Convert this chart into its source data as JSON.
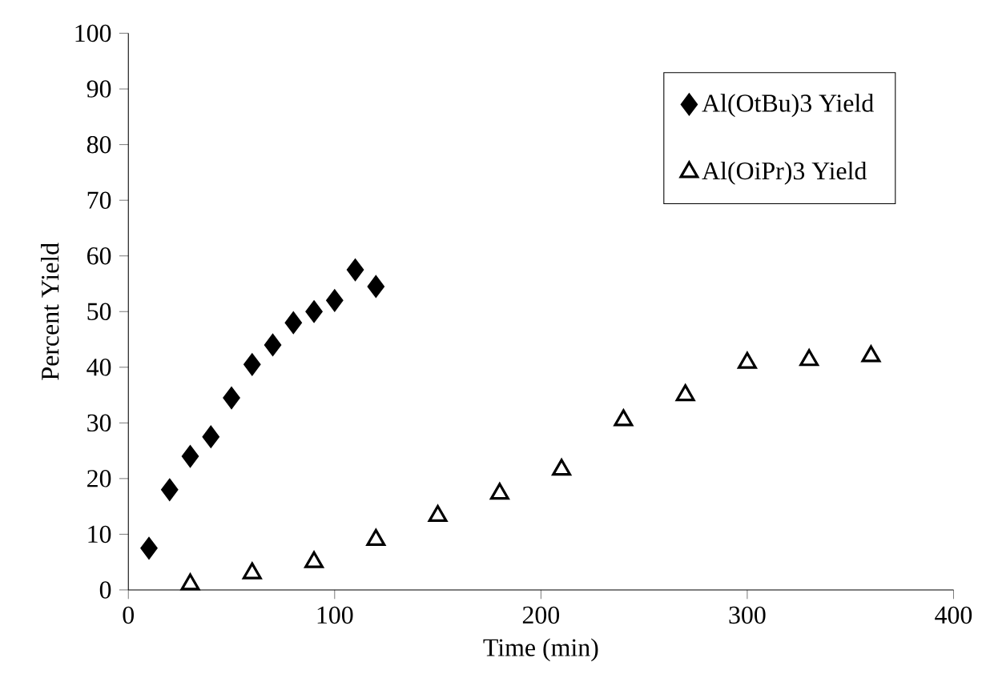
{
  "chart_data": {
    "type": "scatter",
    "xlabel": "Time (min)",
    "ylabel": "Percent Yield",
    "xlim": [
      0,
      400
    ],
    "xticks": [
      0,
      100,
      200,
      300,
      400
    ],
    "ylim": [
      0,
      100
    ],
    "yticks": [
      0,
      10,
      20,
      30,
      40,
      50,
      60,
      70,
      80,
      90,
      100
    ],
    "grid": false,
    "legend": "top right",
    "series": [
      {
        "name": "Al(OtBu)3 Yield",
        "color": "#000000",
        "marker": "diamond",
        "x": [
          10,
          20,
          30,
          40,
          50,
          60,
          70,
          80,
          90,
          100,
          110,
          120
        ],
        "values": [
          7.5,
          18,
          24,
          27.5,
          34.5,
          40.5,
          44,
          48,
          50,
          52,
          57.5,
          54.5
        ]
      },
      {
        "name": "Al(OiPr)3 Yield",
        "color": "#000000",
        "marker": "triangle",
        "x": [
          30,
          60,
          90,
          120,
          150,
          180,
          210,
          240,
          270,
          300,
          330,
          360
        ],
        "values": [
          1,
          3,
          5,
          9,
          13.3,
          17.3,
          21.6,
          30.5,
          35,
          40.8,
          41.3,
          42
        ]
      }
    ]
  }
}
